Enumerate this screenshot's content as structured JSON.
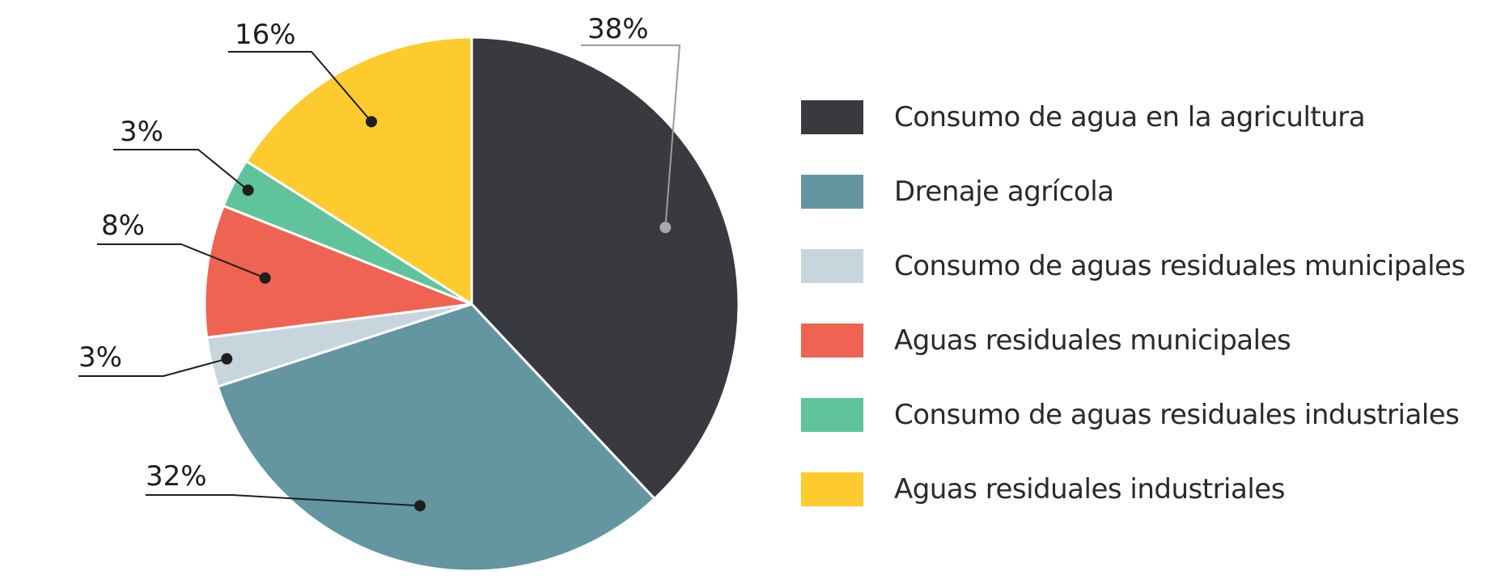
{
  "chart_data": {
    "type": "pie",
    "title": "",
    "legend_position": "right",
    "slices": [
      {
        "label": "Consumo de agua en la agricultura",
        "value": 38,
        "value_label": "38%",
        "color": "#393940"
      },
      {
        "label": "Drenaje agrícola",
        "value": 32,
        "value_label": "32%",
        "color": "#6496a2"
      },
      {
        "label": "Consumo de aguas residuales municipales",
        "value": 3,
        "value_label": "3%",
        "color": "#c8d5dc"
      },
      {
        "label": "Aguas residuales municipales",
        "value": 8,
        "value_label": "8%",
        "color": "#ee6352"
      },
      {
        "label": "Consumo de aguas residuales industriales",
        "value": 3,
        "value_label": "3%",
        "color": "#5fc39c"
      },
      {
        "label": "Aguas residuales industriales",
        "value": 16,
        "value_label": "16%",
        "color": "#fecb2f"
      }
    ]
  }
}
